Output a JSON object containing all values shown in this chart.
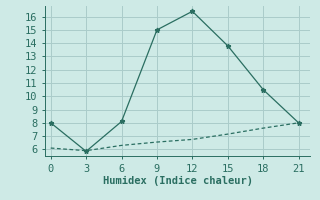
{
  "xlabel": "Humidex (Indice chaleur)",
  "line1_x": [
    0,
    3,
    6,
    9,
    12,
    15,
    18,
    21
  ],
  "line1_y": [
    8.0,
    5.85,
    8.1,
    15.0,
    16.4,
    13.8,
    10.5,
    8.0
  ],
  "line2_x": [
    0,
    3,
    6,
    9,
    12,
    15,
    18,
    21
  ],
  "line2_y": [
    6.1,
    5.9,
    6.3,
    6.55,
    6.75,
    7.15,
    7.6,
    8.0
  ],
  "line_color": "#2a6e61",
  "bg_color": "#ceeae6",
  "grid_color": "#aaccca",
  "xlim": [
    -0.5,
    22
  ],
  "ylim": [
    5.5,
    16.8
  ],
  "xticks": [
    0,
    3,
    6,
    9,
    12,
    15,
    18,
    21
  ],
  "yticks": [
    6,
    7,
    8,
    9,
    10,
    11,
    12,
    13,
    14,
    15,
    16
  ],
  "fontsize": 7.5
}
